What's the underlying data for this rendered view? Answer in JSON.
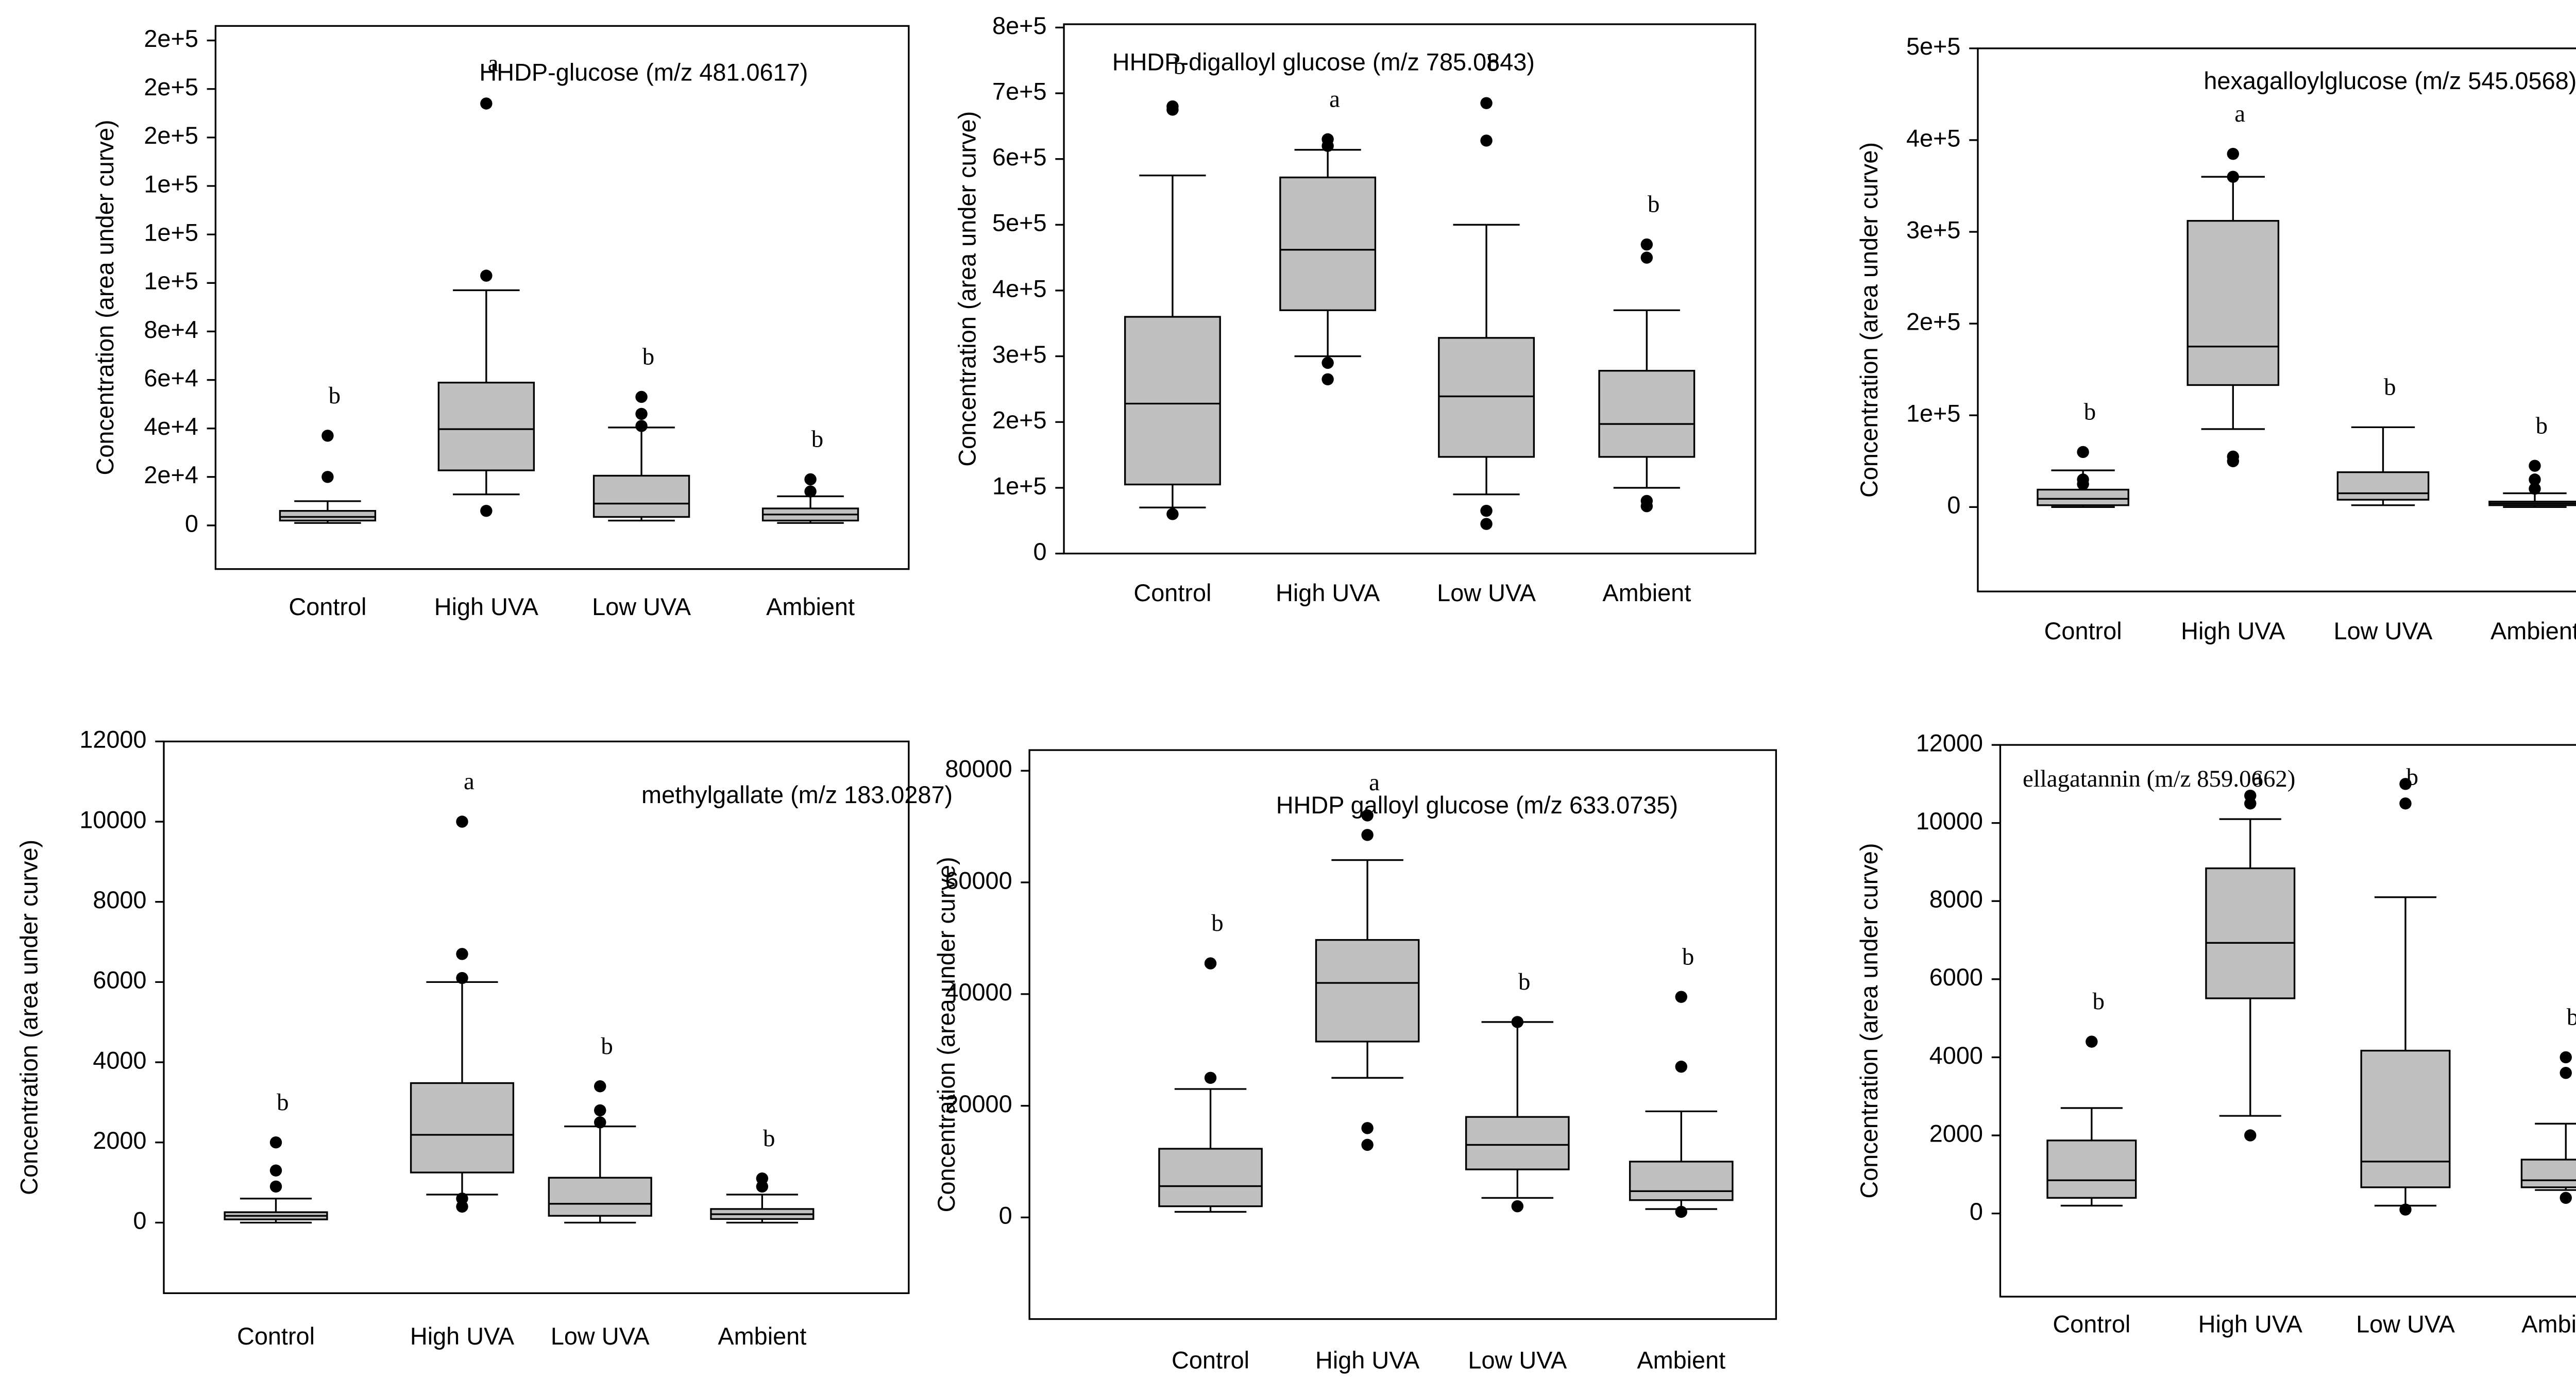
{
  "chart_data": [
    {
      "type": "box",
      "title": "HHDP-glucose (m/z 481.0617)",
      "y_label": "Concentration (area under curve)",
      "categories": [
        "Control",
        "High UVA",
        "Low UVA",
        "Ambient"
      ],
      "ylim": [
        -18000,
        206000
      ],
      "yticks": [
        0,
        {
          "value": 20000,
          "label": "2e+4"
        },
        {
          "value": 40000,
          "label": "4e+4"
        },
        {
          "value": 60000,
          "label": "6e+4"
        },
        {
          "value": 80000,
          "label": "8e+4"
        },
        {
          "value": 100000,
          "label": "1e+5"
        },
        {
          "value": 120000,
          "label": "1e+5"
        },
        {
          "value": 140000,
          "label": "1e+5"
        },
        {
          "value": 160000,
          "label": "2e+5"
        },
        {
          "value": 180000,
          "label": "2e+5"
        },
        {
          "value": 200000,
          "label": "2e+5"
        }
      ],
      "color": "#c0c0c0",
      "boxes": [
        {
          "min": 1000,
          "q1": 2000,
          "median": 3500,
          "q3": 6000,
          "max": 10000,
          "outliers": [
            37000,
            20000
          ]
        },
        {
          "min": 12800,
          "q1": 22700,
          "median": 39700,
          "q3": 58900,
          "max": 97000,
          "outliers": [
            174000,
            103000,
            6000
          ]
        },
        {
          "min": 2000,
          "q1": 3500,
          "median": 9000,
          "q3": 20500,
          "max": 40400,
          "outliers": [
            53000,
            46000,
            41000
          ]
        },
        {
          "min": 1000,
          "q1": 2000,
          "median": 4500,
          "q3": 7000,
          "max": 12000,
          "outliers": [
            19000,
            14000
          ]
        }
      ],
      "letters": [
        "b",
        "a",
        "b",
        "b"
      ]
    },
    {
      "type": "box",
      "title": "HHDP-digalloyl glucose (m/z 785.0843)",
      "y_label": "Concentration (area under curve)",
      "categories": [
        "Control",
        "High UVA",
        "Low UVA",
        "Ambient"
      ],
      "ylim": [
        0,
        805000
      ],
      "yticks": [
        0,
        {
          "value": 100000,
          "label": "1e+5"
        },
        {
          "value": 200000,
          "label": "2e+5"
        },
        {
          "value": 300000,
          "label": "3e+5"
        },
        {
          "value": 400000,
          "label": "4e+5"
        },
        {
          "value": 500000,
          "label": "5e+5"
        },
        {
          "value": 600000,
          "label": "6e+5"
        },
        {
          "value": 700000,
          "label": "7e+5"
        },
        {
          "value": 800000,
          "label": "8e+5"
        }
      ],
      "color": "#c0c0c0",
      "boxes": [
        {
          "min": 70000,
          "q1": 105000,
          "median": 228000,
          "q3": 360000,
          "max": 575000,
          "outliers": [
            680000,
            675000,
            60000
          ]
        },
        {
          "min": 300000,
          "q1": 370000,
          "median": 462000,
          "q3": 572000,
          "max": 614000,
          "outliers": [
            630000,
            620000,
            290000,
            265000
          ]
        },
        {
          "min": 90000,
          "q1": 147000,
          "median": 239000,
          "q3": 328000,
          "max": 500000,
          "outliers": [
            685000,
            628000,
            65000,
            45000
          ]
        },
        {
          "min": 100000,
          "q1": 147000,
          "median": 197000,
          "q3": 278000,
          "max": 370000,
          "outliers": [
            470000,
            450000,
            80000,
            72000
          ]
        }
      ],
      "letters": [
        "b",
        "a",
        "b",
        "b"
      ]
    },
    {
      "type": "box",
      "title": "hexagalloylglucose (m/z 545.0568)",
      "y_label": "Concentration (area under curve)",
      "categories": [
        "Control",
        "High UVA",
        "Low UVA",
        "Ambient"
      ],
      "ylim": [
        -92000,
        500000
      ],
      "yticks": [
        0,
        {
          "value": 100000,
          "label": "1e+5"
        },
        {
          "value": 200000,
          "label": "2e+5"
        },
        {
          "value": 300000,
          "label": "3e+5"
        },
        {
          "value": 400000,
          "label": "4e+5"
        },
        {
          "value": 500000,
          "label": "5e+5"
        }
      ],
      "color": "#c0c0c0",
      "boxes": [
        {
          "min": 0,
          "q1": 2000,
          "median": 9000,
          "q3": 19000,
          "max": 40000,
          "outliers": [
            60000,
            30000,
            25000
          ]
        },
        {
          "min": 85000,
          "q1": 133000,
          "median": 175000,
          "q3": 312000,
          "max": 360000,
          "outliers": [
            385000,
            360000,
            55000,
            50000
          ]
        },
        {
          "min": 2000,
          "q1": 8000,
          "median": 15000,
          "q3": 38000,
          "max": 87000,
          "outliers": []
        },
        {
          "min": 0,
          "q1": 2000,
          "median": 4000,
          "q3": 6000,
          "max": 15000,
          "outliers": [
            45000,
            30000,
            20000
          ]
        }
      ],
      "letters": [
        "b",
        "a",
        "b",
        "b"
      ]
    },
    {
      "type": "box",
      "title": "methylgallate (m/z 183.0287)",
      "y_label": "Concentration (area under curve)",
      "categories": [
        "Control",
        "High UVA",
        "Low UVA",
        "Ambient"
      ],
      "ylim": [
        -1760,
        12000
      ],
      "yticks": [
        0,
        2000,
        4000,
        6000,
        8000,
        10000,
        12000
      ],
      "color": "#c0c0c0",
      "boxes": [
        {
          "min": 0,
          "q1": 80,
          "median": 170,
          "q3": 260,
          "max": 600,
          "outliers": [
            2000,
            1300,
            900
          ]
        },
        {
          "min": 700,
          "q1": 1250,
          "median": 2190,
          "q3": 3480,
          "max": 6000,
          "outliers": [
            10000,
            6700,
            6100,
            600,
            400
          ]
        },
        {
          "min": 0,
          "q1": 170,
          "median": 470,
          "q3": 1120,
          "max": 2400,
          "outliers": [
            3400,
            2800,
            2500
          ]
        },
        {
          "min": 0,
          "q1": 90,
          "median": 210,
          "q3": 340,
          "max": 700,
          "outliers": [
            1100,
            900
          ]
        }
      ],
      "letters": [
        "b",
        "a",
        "b",
        "b"
      ]
    },
    {
      "type": "box",
      "title": "HHDP galloyl glucose (m/z 633.0735)",
      "y_label": "Concentration (area under curve)",
      "categories": [
        "Control",
        "High UVA",
        "Low UVA",
        "Ambient"
      ],
      "ylim": [
        -18200,
        83700
      ],
      "yticks": [
        0,
        20000,
        40000,
        60000,
        80000
      ],
      "color": "#c0c0c0",
      "boxes": [
        {
          "min": 1000,
          "q1": 2000,
          "median": 5600,
          "q3": 12300,
          "max": 23000,
          "outliers": [
            45500,
            25000
          ]
        },
        {
          "min": 25000,
          "q1": 31500,
          "median": 42000,
          "q3": 49700,
          "max": 64000,
          "outliers": [
            72000,
            68500,
            16000,
            13000
          ]
        },
        {
          "min": 3500,
          "q1": 8600,
          "median": 13000,
          "q3": 18000,
          "max": 35000,
          "outliers": [
            35000,
            2000
          ]
        },
        {
          "min": 1500,
          "q1": 3100,
          "median": 4700,
          "q3": 10000,
          "max": 19000,
          "outliers": [
            39500,
            27000,
            1000
          ]
        }
      ],
      "letters": [
        "b",
        "a",
        "b",
        "b"
      ]
    },
    {
      "type": "box",
      "title": "ellagatannin (m/z 859.0662)",
      "y_label": "Concentration (area under curve)",
      "categories": [
        "Control",
        "High UVA",
        "Low UVA",
        "Ambient"
      ],
      "ylim": [
        -2130,
        12000
      ],
      "yticks": [
        0,
        2000,
        4000,
        6000,
        8000,
        10000,
        12000
      ],
      "color": "#c0c0c0",
      "boxes": [
        {
          "min": 200,
          "q1": 400,
          "median": 850,
          "q3": 1870,
          "max": 2700,
          "outliers": [
            4400
          ]
        },
        {
          "min": 2500,
          "q1": 5510,
          "median": 6930,
          "q3": 8840,
          "max": 10100,
          "outliers": [
            10700,
            10500,
            2000
          ]
        },
        {
          "min": 200,
          "q1": 670,
          "median": 1330,
          "q3": 4170,
          "max": 8100,
          "outliers": [
            11000,
            10500,
            100
          ]
        },
        {
          "min": 600,
          "q1": 670,
          "median": 850,
          "q3": 1380,
          "max": 2300,
          "outliers": [
            4000,
            3600,
            400
          ]
        }
      ],
      "letters": [
        "b",
        "a",
        "b",
        "b"
      ]
    }
  ]
}
